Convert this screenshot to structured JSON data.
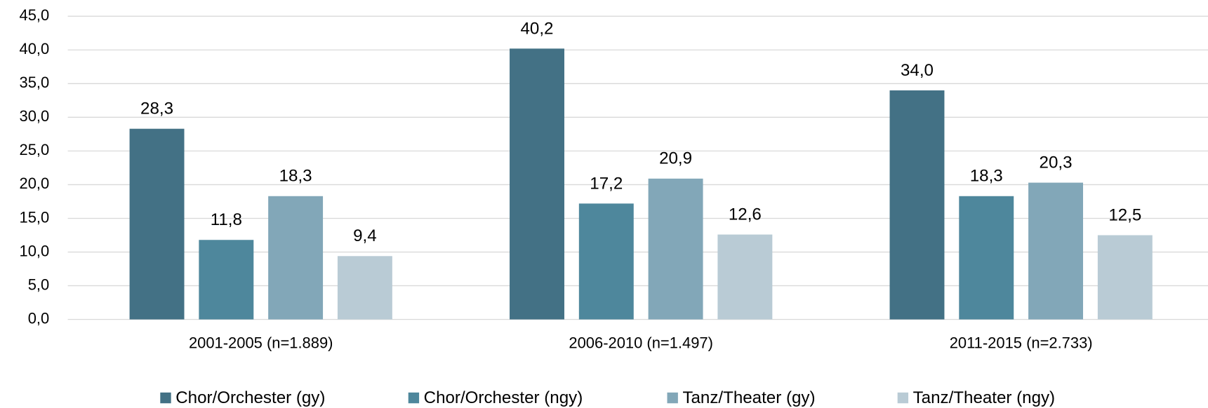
{
  "chart_data": {
    "type": "bar",
    "categories": [
      "2001-2005 (n=1.889)",
      "2006-2010 (n=1.497)",
      "2011-2015 (n=2.733)"
    ],
    "series": [
      {
        "name": "Chor/Orchester (gy)",
        "color": "#437185",
        "values": [
          28.3,
          40.2,
          34.0
        ],
        "value_labels": [
          "28,3",
          "40,2",
          "34,0"
        ]
      },
      {
        "name": "Chor/Orchester (ngy)",
        "color": "#4e879c",
        "values": [
          11.8,
          17.2,
          18.3
        ],
        "value_labels": [
          "11,8",
          "17,2",
          "18,3"
        ]
      },
      {
        "name": "Tanz/Theater (gy)",
        "color": "#82a7b8",
        "values": [
          18.3,
          20.9,
          20.3
        ],
        "value_labels": [
          "18,3",
          "20,9",
          "20,3"
        ]
      },
      {
        "name": "Tanz/Theater (ngy)",
        "color": "#b9cbd5",
        "values": [
          9.4,
          12.6,
          12.5
        ],
        "value_labels": [
          "9,4",
          "12,6",
          "12,5"
        ]
      }
    ],
    "ylim": [
      0,
      45
    ],
    "yticks": [
      {
        "value": 0,
        "label": "0,0"
      },
      {
        "value": 5,
        "label": "5,0"
      },
      {
        "value": 10,
        "label": "10,0"
      },
      {
        "value": 15,
        "label": "15,0"
      },
      {
        "value": 20,
        "label": "20,0"
      },
      {
        "value": 25,
        "label": "25,0"
      },
      {
        "value": 30,
        "label": "30,0"
      },
      {
        "value": 35,
        "label": "35,0"
      },
      {
        "value": 40,
        "label": "40,0"
      },
      {
        "value": 45,
        "label": "45,0"
      }
    ],
    "grid": true,
    "legend": "bottom"
  }
}
